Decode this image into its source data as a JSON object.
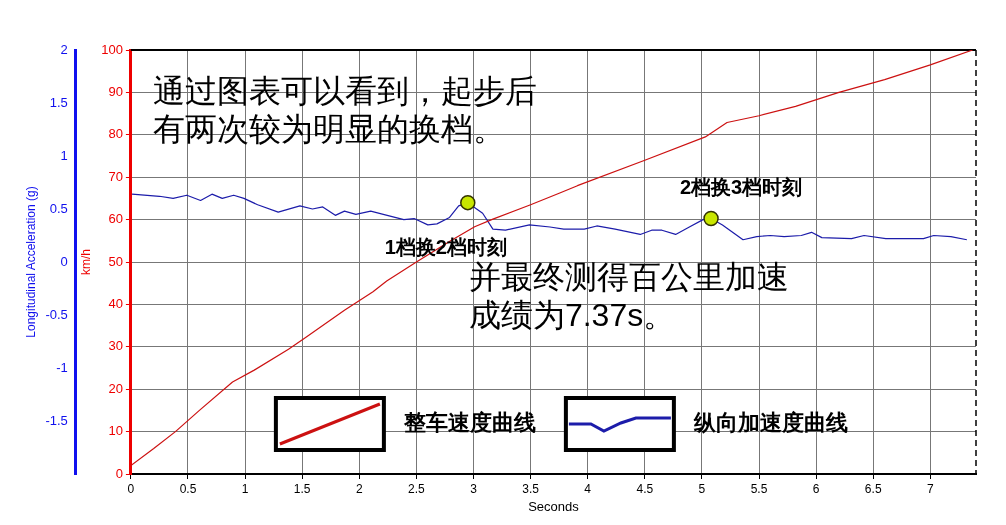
{
  "chart_data": {
    "type": "line",
    "xlabel": "Seconds",
    "ylabel": "Longitudinal Acceleration (g)",
    "y2label": "km/h",
    "xlim": [
      0,
      7.4
    ],
    "xticks": [
      0,
      0.5,
      1,
      1.5,
      2,
      2.5,
      3,
      3.5,
      4,
      4.5,
      5,
      5.5,
      6,
      6.5,
      7
    ],
    "ylim": [
      -2,
      2
    ],
    "yticks": [
      -1.5,
      -1,
      -0.5,
      0,
      0.5,
      1,
      1.5,
      2
    ],
    "y2lim": [
      0,
      100
    ],
    "y2ticks": [
      0,
      10,
      20,
      30,
      40,
      50,
      60,
      70,
      80,
      90,
      100
    ],
    "grid": true,
    "legend": "bottom",
    "line_style": "solid",
    "series": [
      {
        "name": "整车速度曲线",
        "axis": "y2",
        "color": "#cc1111",
        "marker": "none",
        "x": [
          0,
          0.2,
          0.39,
          0.6,
          0.89,
          1.08,
          1.38,
          1.53,
          1.87,
          2.12,
          2.24,
          2.5,
          2.8,
          3.01,
          3.17,
          3.5,
          3.75,
          3.91,
          4.5,
          5.03,
          5.22,
          5.5,
          5.82,
          6.2,
          6.6,
          7.0,
          7.37
        ],
        "values": [
          2,
          6,
          10,
          15,
          21.7,
          24.5,
          29.4,
          32.2,
          38.6,
          43,
          45.5,
          50,
          55,
          58.3,
          60.1,
          63.5,
          66.2,
          68,
          74,
          79.5,
          82.9,
          84.5,
          86.7,
          90,
          93,
          96.5,
          100
        ]
      },
      {
        "name": "纵向加速度曲线",
        "axis": "y",
        "color": "#1c1caa",
        "marker": "none",
        "x": [
          0.01,
          0.25,
          0.37,
          0.49,
          0.61,
          0.71,
          0.8,
          0.9,
          0.99,
          1.11,
          1.29,
          1.48,
          1.59,
          1.68,
          1.79,
          1.87,
          1.97,
          2.1,
          2.21,
          2.39,
          2.48,
          2.6,
          2.68,
          2.79,
          2.87,
          2.95,
          3.08,
          3.17,
          3.28,
          3.49,
          3.67,
          3.79,
          3.97,
          4.08,
          4.24,
          4.46,
          4.56,
          4.65,
          4.77,
          4.89,
          5.01,
          5.08,
          5.18,
          5.36,
          5.48,
          5.6,
          5.72,
          5.87,
          5.96,
          6.05,
          6.31,
          6.42,
          6.61,
          6.94,
          7.03,
          7.18,
          7.32
        ],
        "values": [
          0.64,
          0.62,
          0.6,
          0.63,
          0.58,
          0.64,
          0.6,
          0.63,
          0.6,
          0.54,
          0.47,
          0.53,
          0.5,
          0.52,
          0.44,
          0.48,
          0.45,
          0.48,
          0.45,
          0.4,
          0.41,
          0.35,
          0.36,
          0.42,
          0.53,
          0.56,
          0.46,
          0.31,
          0.3,
          0.35,
          0.33,
          0.31,
          0.31,
          0.34,
          0.31,
          0.26,
          0.3,
          0.3,
          0.26,
          0.33,
          0.4,
          0.41,
          0.35,
          0.21,
          0.24,
          0.25,
          0.24,
          0.25,
          0.28,
          0.23,
          0.22,
          0.25,
          0.22,
          0.22,
          0.25,
          0.24,
          0.21
        ]
      },
      {
        "type": "scatter",
        "axis": "y",
        "color": "#c8e600",
        "marker": "circle",
        "x": [
          2.95,
          5.08
        ],
        "values": [
          0.56,
          0.41
        ]
      }
    ],
    "annotations": [
      "通过图表可以看到，起步后有两次较为明显的换档。",
      "并最终测得百公里加速成绩为7.37s。",
      {
        "text": "1档换2档时刻",
        "x": 2.95,
        "y": 0.56
      },
      {
        "text": "2档换3档时刻",
        "x": 5.08,
        "y": 0.41
      }
    ]
  }
}
